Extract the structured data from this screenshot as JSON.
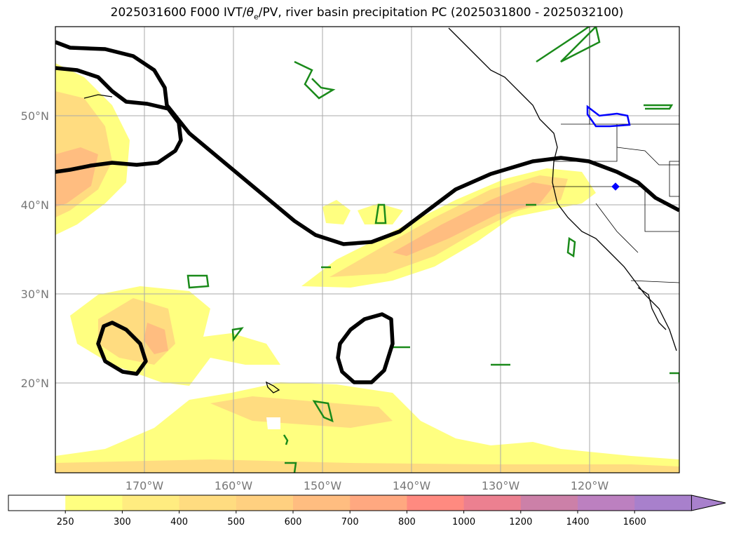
{
  "title": {
    "text": "2025031600 F000 IVT/θe/PV, river basin precipitation PC (2025031800 - 2025032100)",
    "prefix": "2025031600 F000 IVT/",
    "theta": "θ",
    "sub": "e",
    "suffix": "/PV, river basin precipitation PC (2025031800 - 2025032100)"
  },
  "map": {
    "lat_labels": [
      "50°N",
      "40°N",
      "30°N",
      "20°N"
    ],
    "lon_labels": [
      "170°W",
      "160°W",
      "150°W",
      "140°W",
      "130°W",
      "120°W"
    ],
    "lat_range": [
      10,
      60
    ],
    "lon_range": [
      -180,
      -110
    ],
    "grid": true,
    "colors": {
      "coast": "#000000",
      "pv_contour": "#000000",
      "theta_contour": "#1a8a1a",
      "precip_contour": "#0000ff"
    }
  },
  "colorbar": {
    "levels": [
      "250",
      "300",
      "400",
      "500",
      "600",
      "700",
      "800",
      "1000",
      "1200",
      "1400",
      "1600"
    ],
    "colors": [
      "#ffffff",
      "#ffff80",
      "#ffec80",
      "#ffdc80",
      "#ffd080",
      "#ffbd80",
      "#ffa880",
      "#ff8a80",
      "#ec8090",
      "#cc80a8",
      "#bc80c0",
      "#a880cc"
    ],
    "extend": "max"
  }
}
